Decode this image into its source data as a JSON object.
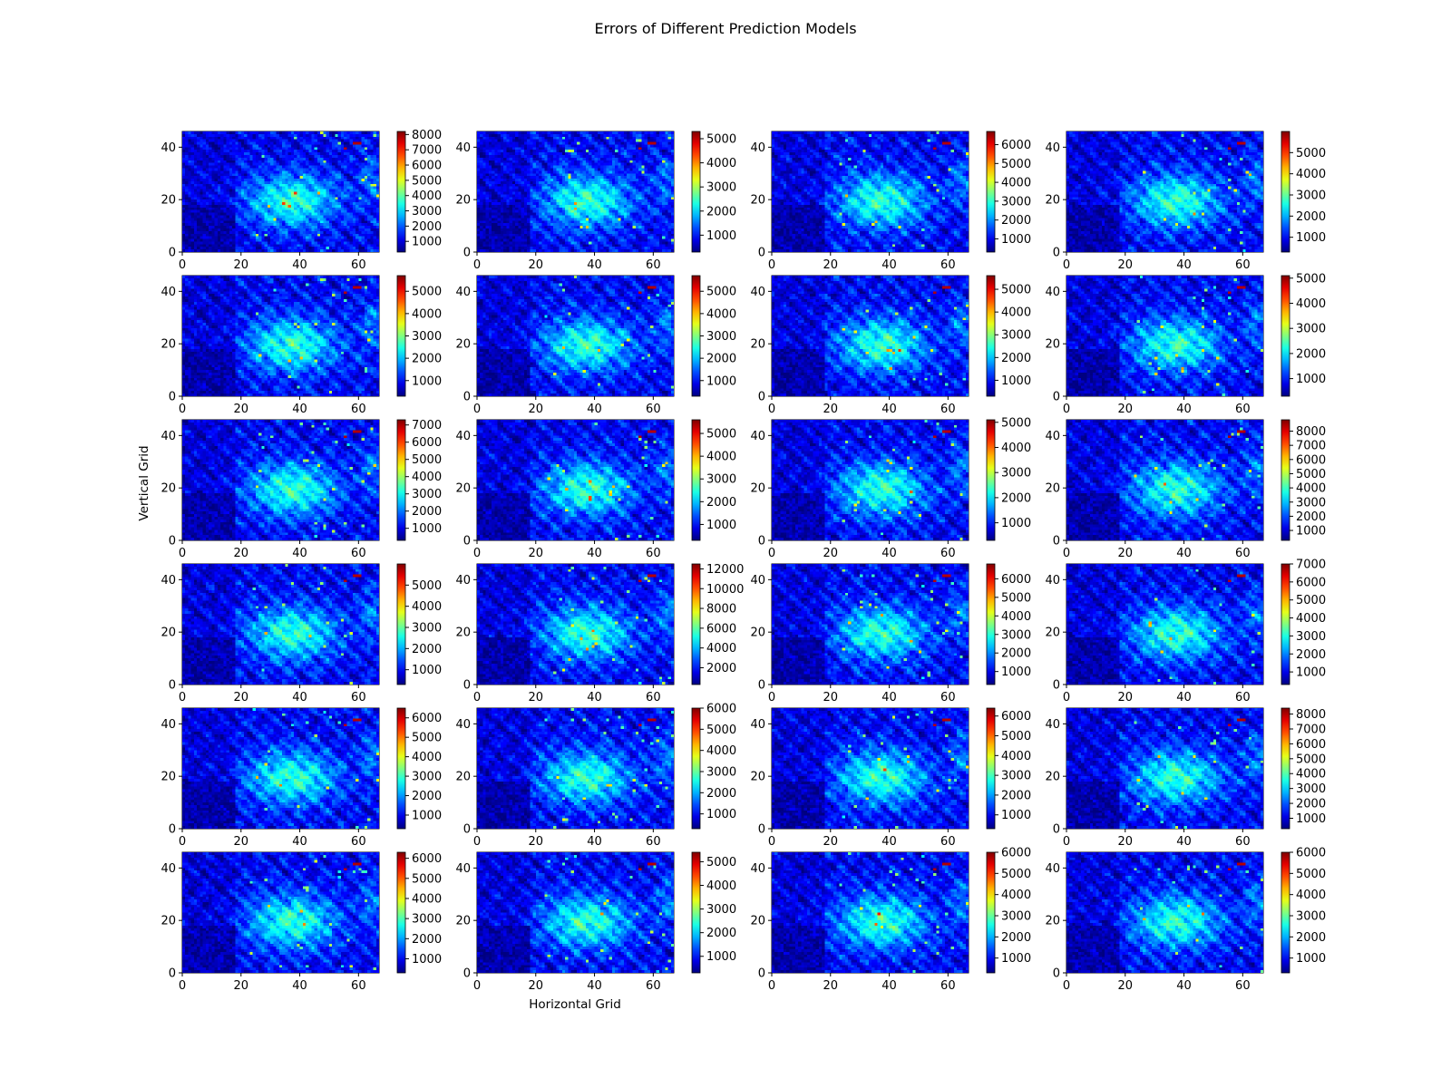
{
  "chart_data": {
    "type": "heatmap",
    "title": "Errors of Different Prediction Models",
    "xlabel": "Horizontal Grid",
    "ylabel": "Vertical Grid",
    "grid": false,
    "colormap": "jet",
    "layout": {
      "rows": 6,
      "cols": 4
    },
    "xlim": [
      0,
      67
    ],
    "ylim": [
      0,
      46
    ],
    "x_ticks": [
      0,
      20,
      40,
      60
    ],
    "y_ticks": [
      0,
      20,
      40
    ],
    "panels": [
      {
        "vmin": 300,
        "vmax": 8200,
        "cbar_ticks": [
          1000,
          2000,
          3000,
          4000,
          5000,
          6000,
          7000,
          8000
        ]
      },
      {
        "vmin": 300,
        "vmax": 5300,
        "cbar_ticks": [
          1000,
          2000,
          3000,
          4000,
          5000
        ]
      },
      {
        "vmin": 300,
        "vmax": 6700,
        "cbar_ticks": [
          1000,
          2000,
          3000,
          4000,
          5000,
          6000
        ]
      },
      {
        "vmin": 300,
        "vmax": 6000,
        "cbar_ticks": [
          1000,
          2000,
          3000,
          4000,
          5000
        ]
      },
      {
        "vmin": 300,
        "vmax": 5700,
        "cbar_ticks": [
          1000,
          2000,
          3000,
          4000,
          5000
        ]
      },
      {
        "vmin": 300,
        "vmax": 5700,
        "cbar_ticks": [
          1000,
          2000,
          3000,
          4000,
          5000
        ]
      },
      {
        "vmin": 300,
        "vmax": 5600,
        "cbar_ticks": [
          1000,
          2000,
          3000,
          4000,
          5000
        ]
      },
      {
        "vmin": 300,
        "vmax": 5100,
        "cbar_ticks": [
          1000,
          2000,
          3000,
          4000,
          5000
        ]
      },
      {
        "vmin": 300,
        "vmax": 7300,
        "cbar_ticks": [
          1000,
          2000,
          3000,
          4000,
          5000,
          6000,
          7000
        ]
      },
      {
        "vmin": 300,
        "vmax": 5600,
        "cbar_ticks": [
          1000,
          2000,
          3000,
          4000,
          5000
        ]
      },
      {
        "vmin": 300,
        "vmax": 5100,
        "cbar_ticks": [
          1000,
          2000,
          3000,
          4000,
          5000
        ]
      },
      {
        "vmin": 300,
        "vmax": 8800,
        "cbar_ticks": [
          1000,
          2000,
          3000,
          4000,
          5000,
          6000,
          7000,
          8000
        ]
      },
      {
        "vmin": 300,
        "vmax": 6000,
        "cbar_ticks": [
          1000,
          2000,
          3000,
          4000,
          5000
        ]
      },
      {
        "vmin": 300,
        "vmax": 12500,
        "cbar_ticks": [
          2000,
          4000,
          6000,
          8000,
          10000,
          12000
        ]
      },
      {
        "vmin": 300,
        "vmax": 6800,
        "cbar_ticks": [
          1000,
          2000,
          3000,
          4000,
          5000,
          6000
        ]
      },
      {
        "vmin": 300,
        "vmax": 7000,
        "cbar_ticks": [
          1000,
          2000,
          3000,
          4000,
          5000,
          6000,
          7000
        ]
      },
      {
        "vmin": 300,
        "vmax": 6500,
        "cbar_ticks": [
          1000,
          2000,
          3000,
          4000,
          5000,
          6000
        ]
      },
      {
        "vmin": 300,
        "vmax": 6000,
        "cbar_ticks": [
          1000,
          2000,
          3000,
          4000,
          5000,
          6000
        ]
      },
      {
        "vmin": 300,
        "vmax": 6400,
        "cbar_ticks": [
          1000,
          2000,
          3000,
          4000,
          5000,
          6000
        ]
      },
      {
        "vmin": 300,
        "vmax": 8400,
        "cbar_ticks": [
          1000,
          2000,
          3000,
          4000,
          5000,
          6000,
          7000,
          8000
        ]
      },
      {
        "vmin": 300,
        "vmax": 6300,
        "cbar_ticks": [
          1000,
          2000,
          3000,
          4000,
          5000,
          6000
        ]
      },
      {
        "vmin": 300,
        "vmax": 5400,
        "cbar_ticks": [
          1000,
          2000,
          3000,
          4000,
          5000
        ]
      },
      {
        "vmin": 300,
        "vmax": 6000,
        "cbar_ticks": [
          1000,
          2000,
          3000,
          4000,
          5000,
          6000
        ]
      },
      {
        "vmin": 300,
        "vmax": 6000,
        "cbar_ticks": [
          1000,
          2000,
          3000,
          4000,
          5000,
          6000
        ]
      }
    ]
  }
}
